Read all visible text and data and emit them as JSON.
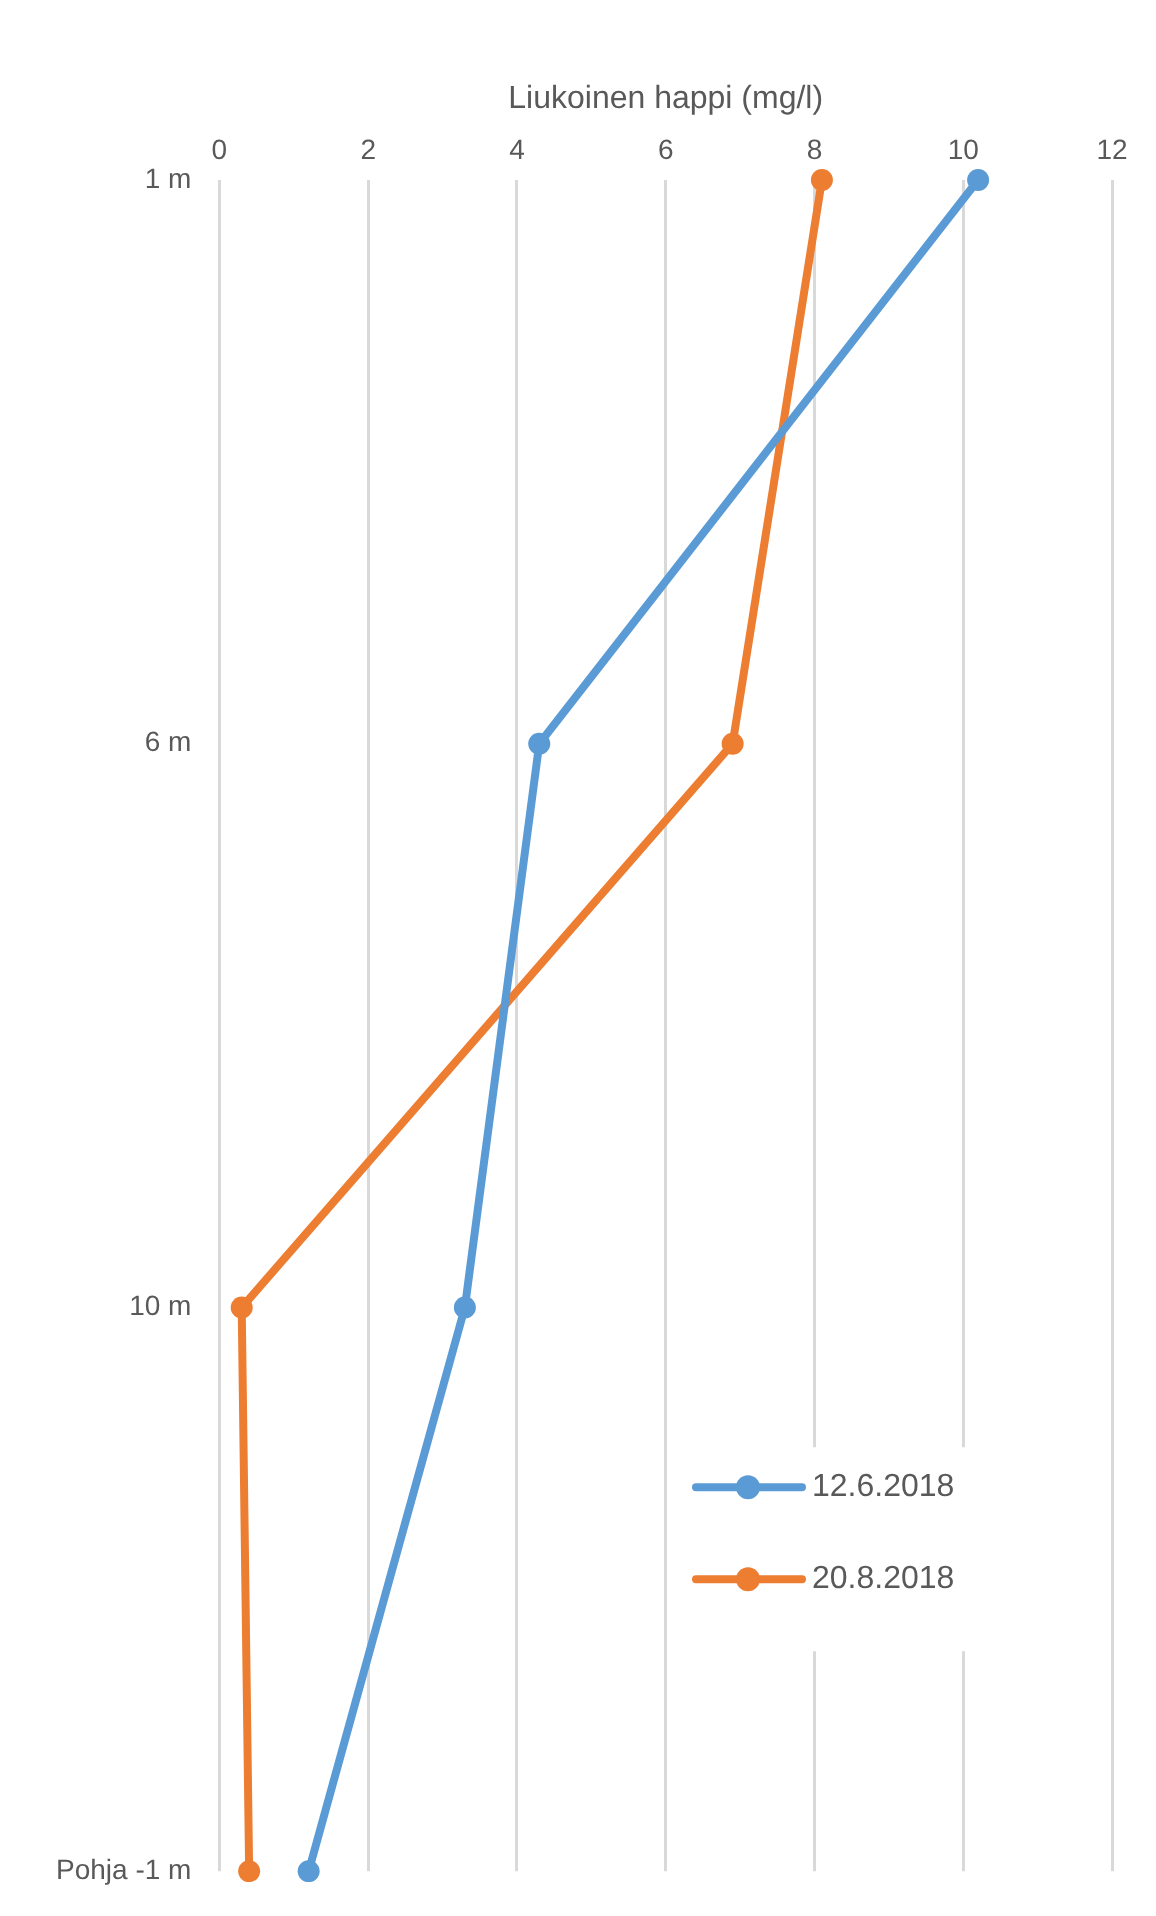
{
  "chart_data": {
    "type": "line",
    "orientation": "horizontal",
    "xlabel": "Liukoinen happi (mg/l)",
    "categories": [
      "1 m",
      "6 m",
      "10 m",
      "Pohja -1 m"
    ],
    "series": [
      {
        "name": "12.6.2018",
        "color": "#5b9bd5",
        "values": [
          10.2,
          4.3,
          3.3,
          1.2
        ]
      },
      {
        "name": "20.8.2018",
        "color": "#ed7d31",
        "values": [
          8.1,
          6.9,
          0.3,
          0.4
        ]
      }
    ],
    "xlim": [
      0,
      12
    ],
    "xticks": [
      0,
      2,
      4,
      6,
      8,
      10,
      12
    ],
    "grid": "x",
    "legend": "bottom right",
    "marker": "circle",
    "line_style": "solid"
  }
}
